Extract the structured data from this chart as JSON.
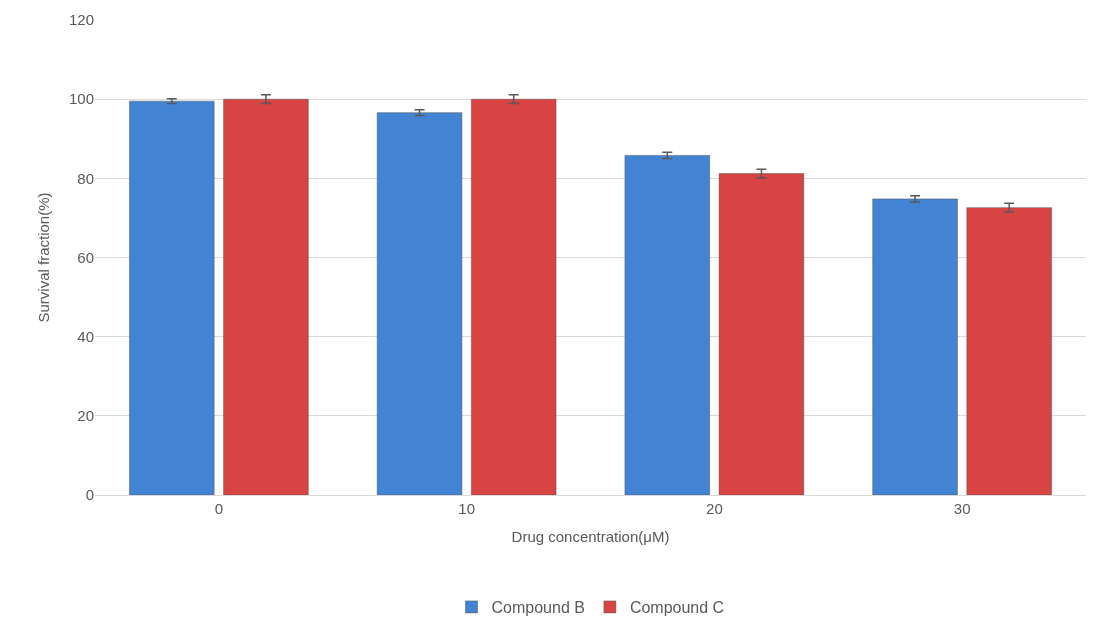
{
  "chart_data": {
    "type": "bar",
    "xlabel": "Drug concentration(μM)",
    "ylabel": "Survival fraction(%)",
    "categories": [
      "0",
      "10",
      "20",
      "30"
    ],
    "series": [
      {
        "name": "Compound B",
        "color": "#4283d3",
        "values": [
          99.5,
          96.6,
          85.8,
          74.8
        ],
        "errors": [
          0.6,
          0.7,
          0.8,
          0.8
        ]
      },
      {
        "name": "Compound C",
        "color": "#d84343",
        "values": [
          100,
          100,
          81.2,
          72.6
        ],
        "errors": [
          1.1,
          1.1,
          1.1,
          1.1
        ]
      }
    ],
    "ylim": [
      0,
      120
    ],
    "yticks": [
      0,
      20,
      40,
      60,
      80,
      100,
      120
    ],
    "grid": "y",
    "legend": "bottom"
  }
}
